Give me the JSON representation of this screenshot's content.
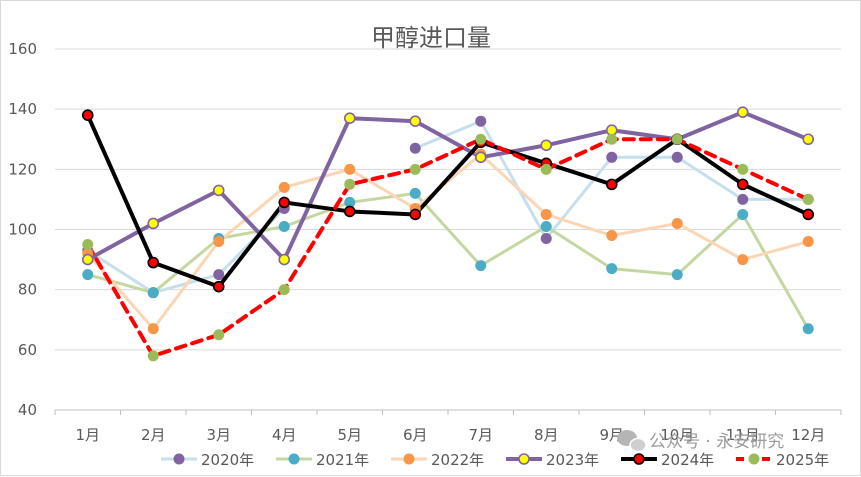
{
  "chart_data": {
    "type": "line",
    "title": "甲醇进口量",
    "categories": [
      "1月",
      "2月",
      "3月",
      "4月",
      "5月",
      "6月",
      "7月",
      "8月",
      "9月",
      "10月",
      "11月",
      "12月"
    ],
    "ylim": [
      40,
      160
    ],
    "yticks": [
      40,
      60,
      80,
      100,
      120,
      140,
      160
    ],
    "grid": true,
    "legend_position": "bottom",
    "series": [
      {
        "name": "2020年",
        "color": "#c5e0ec",
        "marker": "#8064a2",
        "style": "solid",
        "values": [
          93,
          79,
          85,
          107,
          null,
          127,
          136,
          97,
          124,
          124,
          110,
          110
        ]
      },
      {
        "name": "2021年",
        "color": "#c4d7a0",
        "marker": "#4bacc6",
        "style": "solid",
        "values": [
          85,
          79,
          97,
          101,
          109,
          112,
          88,
          101,
          87,
          85,
          105,
          67
        ]
      },
      {
        "name": "2022年",
        "color": "#fcd5b4",
        "marker": "#f79646",
        "style": "solid",
        "values": [
          92,
          67,
          96,
          114,
          120,
          107,
          125,
          105,
          98,
          102,
          90,
          96
        ]
      },
      {
        "name": "2023年",
        "color": "#8064a2",
        "marker": "#ffff00",
        "style": "solid",
        "values": [
          90,
          102,
          113,
          90,
          137,
          136,
          124,
          128,
          133,
          130,
          139,
          130
        ]
      },
      {
        "name": "2024年",
        "color": "#000000",
        "marker": "#ff0000",
        "style": "solid",
        "values": [
          138,
          89,
          81,
          109,
          106,
          105,
          129,
          122,
          115,
          130,
          115,
          105
        ]
      },
      {
        "name": "2025年",
        "color": "#ff0000",
        "marker": "#9bbb59",
        "style": "dashed",
        "values": [
          95,
          58,
          65,
          80,
          115,
          120,
          130,
          120,
          130,
          130,
          120,
          110
        ]
      }
    ]
  },
  "watermark": {
    "text": "公众号 · 永安研究",
    "icon": "wechat-icon"
  }
}
